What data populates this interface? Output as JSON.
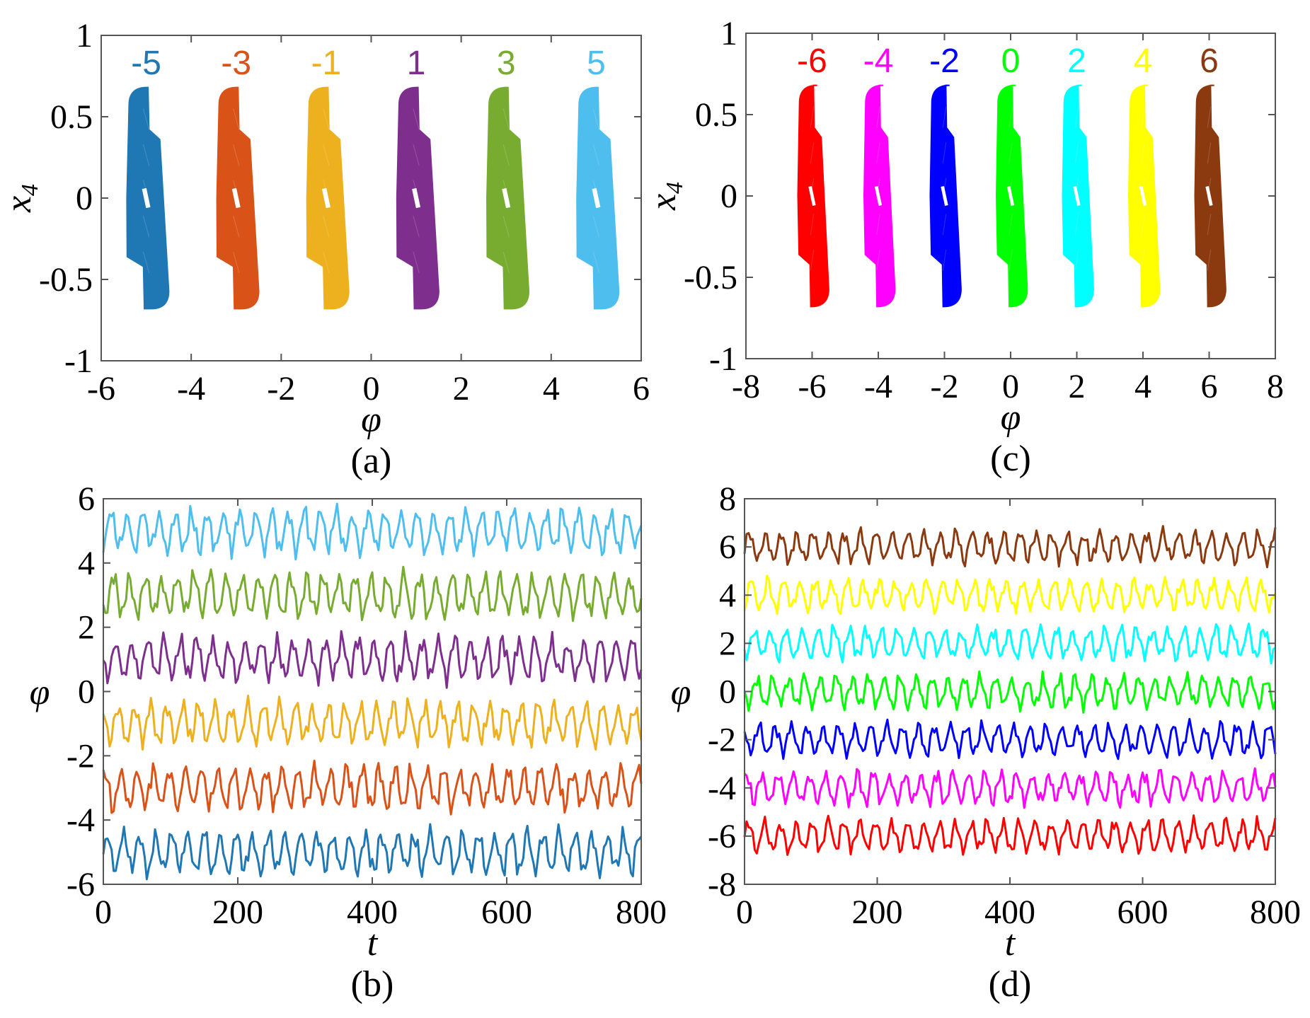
{
  "chart_data": [
    {
      "id": "a",
      "type": "scatter",
      "caption": "(a)",
      "xlabel": "φ",
      "ylabel": "x",
      "ylabel_sub": "4",
      "xlim": [
        -6,
        6
      ],
      "ylim": [
        -1,
        1
      ],
      "xticks": [
        "-6",
        "-4",
        "-2",
        "0",
        "2",
        "4",
        "6"
      ],
      "xtick_values": [
        -6,
        -4,
        -2,
        0,
        2,
        4,
        6
      ],
      "yticks": [
        "1",
        "0.5",
        "0",
        "-0.5",
        "-1"
      ],
      "ytick_values": [
        1,
        0.5,
        0,
        -0.5,
        -1
      ],
      "series": [
        {
          "name": "-5",
          "center": -5,
          "color": "#1f77b4"
        },
        {
          "name": "-3",
          "center": -3,
          "color": "#d95319"
        },
        {
          "name": "-1",
          "center": -1,
          "color": "#edb120"
        },
        {
          "name": "1",
          "center": 1,
          "color": "#7e2f8e"
        },
        {
          "name": "3",
          "center": 3,
          "color": "#77ac30"
        },
        {
          "name": "5",
          "center": 5,
          "color": "#4dbeee"
        }
      ]
    },
    {
      "id": "b",
      "type": "line",
      "caption": "(b)",
      "xlabel": "t",
      "ylabel": "φ",
      "xlim": [
        0,
        800
      ],
      "ylim": [
        -6,
        6
      ],
      "xticks": [
        "0",
        "200",
        "400",
        "600",
        "800"
      ],
      "xtick_values": [
        0,
        200,
        400,
        600,
        800
      ],
      "yticks": [
        "6",
        "4",
        "2",
        "0",
        "-2",
        "-4",
        "-6"
      ],
      "ytick_values": [
        6,
        4,
        2,
        0,
        -2,
        -4,
        -6
      ],
      "series": [
        {
          "name": "-5",
          "center": -5,
          "color": "#1f77b4"
        },
        {
          "name": "-3",
          "center": -3,
          "color": "#d95319"
        },
        {
          "name": "-1",
          "center": -1,
          "color": "#edb120"
        },
        {
          "name": "1",
          "center": 1,
          "color": "#7e2f8e"
        },
        {
          "name": "3",
          "center": 3,
          "color": "#77ac30"
        },
        {
          "name": "5",
          "center": 5,
          "color": "#4dbeee"
        }
      ]
    },
    {
      "id": "c",
      "type": "scatter",
      "caption": "(c)",
      "xlabel": "φ",
      "ylabel": "x",
      "ylabel_sub": "4",
      "xlim": [
        -8,
        8
      ],
      "ylim": [
        -1,
        1
      ],
      "xticks": [
        "-8",
        "-6",
        "-4",
        "-2",
        "0",
        "2",
        "4",
        "6",
        "8"
      ],
      "xtick_values": [
        -8,
        -6,
        -4,
        -2,
        0,
        2,
        4,
        6,
        8
      ],
      "yticks": [
        "1",
        "0.5",
        "0",
        "-0.5",
        "-1"
      ],
      "ytick_values": [
        1,
        0.5,
        0,
        -0.5,
        -1
      ],
      "series": [
        {
          "name": "-6",
          "center": -6,
          "color": "#ff0000"
        },
        {
          "name": "-4",
          "center": -4,
          "color": "#ff00ff"
        },
        {
          "name": "-2",
          "center": -2,
          "color": "#0000ff"
        },
        {
          "name": "0",
          "center": 0,
          "color": "#00ff00"
        },
        {
          "name": "2",
          "center": 2,
          "color": "#00ffff"
        },
        {
          "name": "4",
          "center": 4,
          "color": "#ffff00"
        },
        {
          "name": "6",
          "center": 6,
          "color": "#8b3a0f"
        }
      ]
    },
    {
      "id": "d",
      "type": "line",
      "caption": "(d)",
      "xlabel": "t",
      "ylabel": "φ",
      "xlim": [
        0,
        800
      ],
      "ylim": [
        -8,
        8
      ],
      "xticks": [
        "0",
        "200",
        "400",
        "600",
        "800"
      ],
      "xtick_values": [
        0,
        200,
        400,
        600,
        800
      ],
      "yticks": [
        "8",
        "6",
        "4",
        "2",
        "0",
        "-2",
        "-4",
        "-6",
        "-8"
      ],
      "ytick_values": [
        8,
        6,
        4,
        2,
        0,
        -2,
        -4,
        -6,
        -8
      ],
      "series": [
        {
          "name": "-6",
          "center": -6,
          "color": "#ff0000"
        },
        {
          "name": "-4",
          "center": -4,
          "color": "#ff00ff"
        },
        {
          "name": "-2",
          "center": -2,
          "color": "#0000ff"
        },
        {
          "name": "0",
          "center": 0,
          "color": "#00ff00"
        },
        {
          "name": "2",
          "center": 2,
          "color": "#00ffff"
        },
        {
          "name": "4",
          "center": 4,
          "color": "#ffff00"
        },
        {
          "name": "6",
          "center": 6,
          "color": "#8b3a0f"
        }
      ]
    }
  ]
}
